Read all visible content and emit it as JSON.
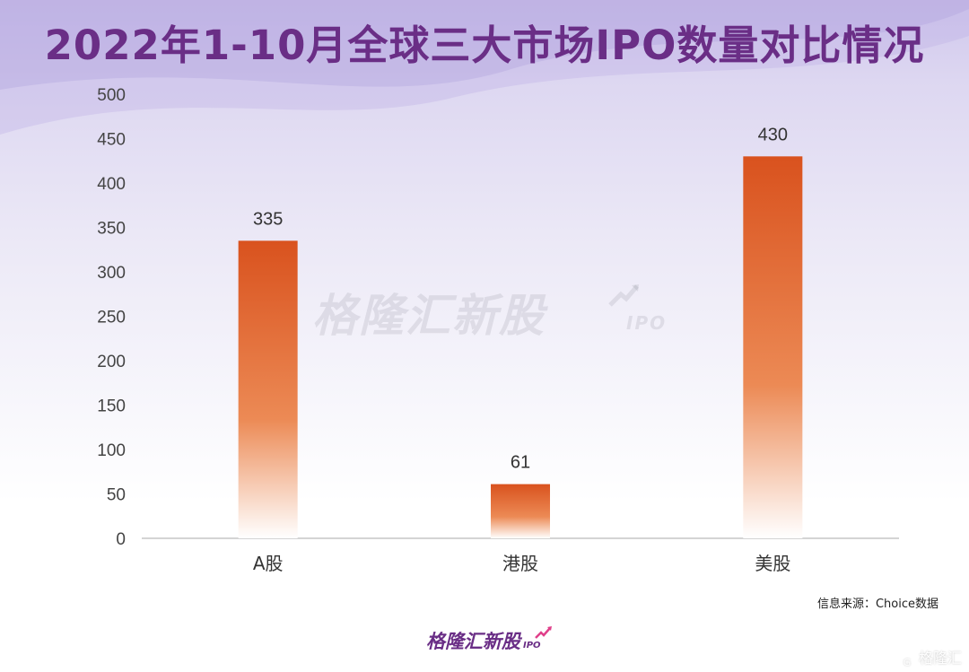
{
  "title": "2022年1-10月全球三大市场IPO数量对比情况",
  "watermark": {
    "main": "格隆汇新股",
    "sub": "IPO"
  },
  "source": "信息来源：Choice数据",
  "brand": {
    "main": "格隆汇新股",
    "sub": "IPO"
  },
  "corner_logo": {
    "icon": "G",
    "text": "格隆汇"
  },
  "colors": {
    "title": "#6a2e86",
    "bar_top": "#d9521e",
    "bar_mid": "#ec8a55",
    "bar_bottom": "#ffffff",
    "axis": "#bbbbbb"
  },
  "chart_data": {
    "type": "bar",
    "categories": [
      "A股",
      "港股",
      "美股"
    ],
    "values": [
      335,
      61,
      430
    ],
    "ylim": [
      0,
      500
    ],
    "yticks": [
      0,
      50,
      100,
      150,
      200,
      250,
      300,
      350,
      400,
      450,
      500
    ],
    "grid": false,
    "data_labels": true
  }
}
